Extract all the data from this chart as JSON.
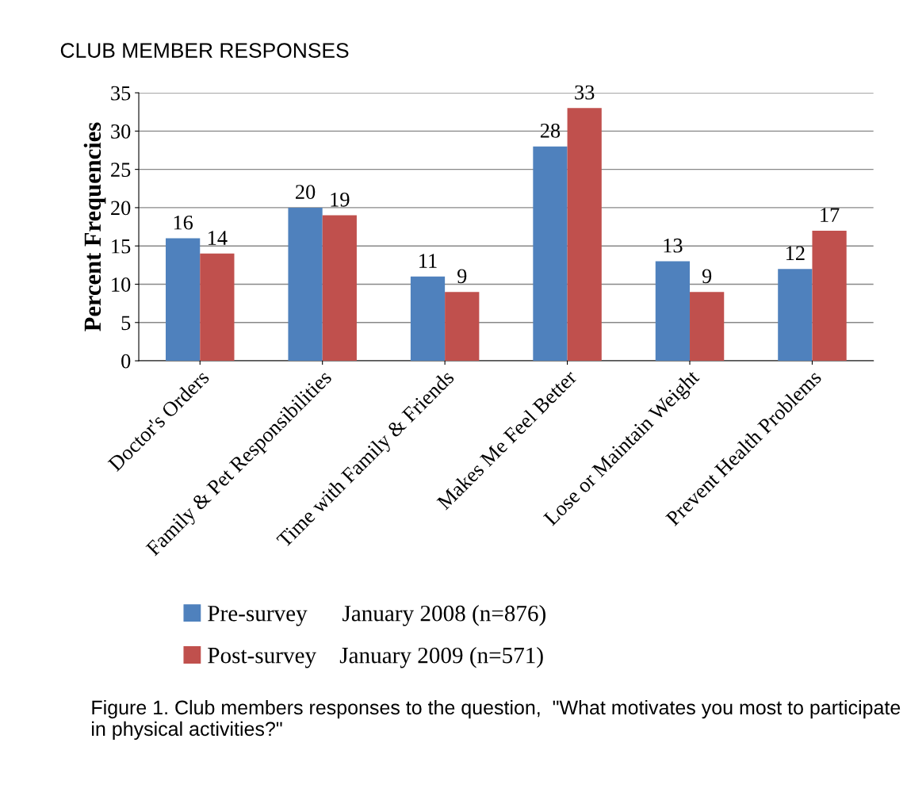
{
  "chart_data": {
    "type": "bar",
    "title": "CLUB MEMBER RESPONSES",
    "ylabel": "Percent Frequencies",
    "categories": [
      "Doctor's Orders",
      "Family & Pet Responsibilities",
      "Time with Family & Friends",
      "Makes Me Feel Better",
      "Lose or Maintain Weight",
      "Prevent Health Problems"
    ],
    "series": [
      {
        "name": "Pre-survey      January 2008 (n=876)",
        "color": "#4f81bd",
        "values": [
          16,
          20,
          11,
          28,
          13,
          12
        ]
      },
      {
        "name": "Post-survey    January 2009 (n=571)",
        "color": "#c0504d",
        "values": [
          14,
          19,
          9,
          33,
          9,
          17
        ]
      }
    ],
    "ylim": [
      0,
      35
    ],
    "yticks": [
      0,
      5,
      10,
      15,
      20,
      25,
      30,
      35
    ],
    "grid": "y",
    "legend": "bottom left",
    "data_labels": true,
    "annotations": [
      "Figure 1. Club members responses to the question,  \"What motivates you most to participate in physical activities?\""
    ]
  }
}
